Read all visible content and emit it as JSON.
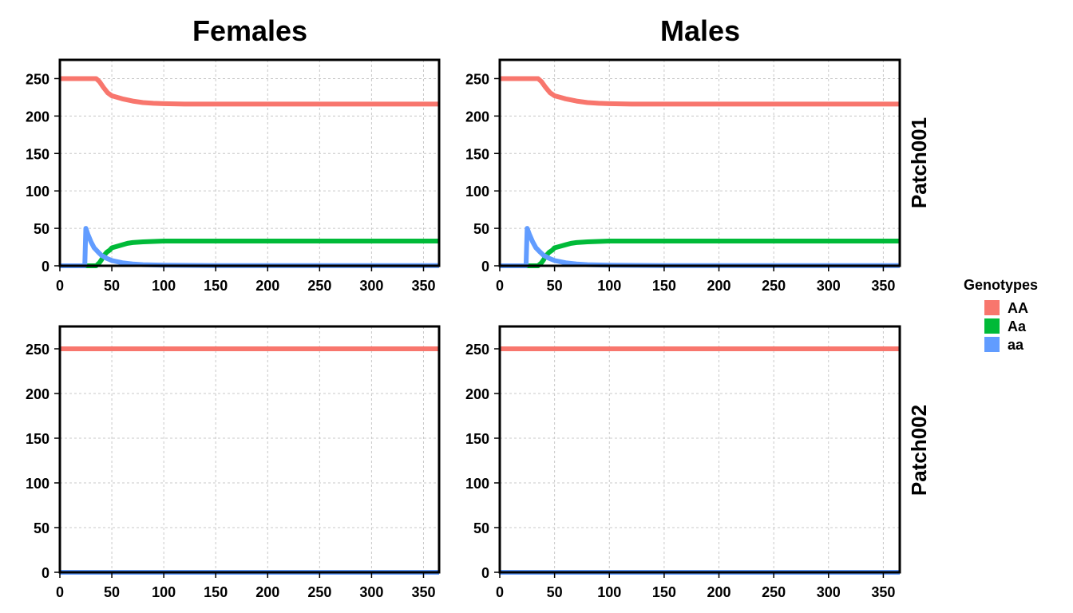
{
  "chart_data": {
    "type": "line",
    "columns": [
      "Females",
      "Males"
    ],
    "rows": [
      "Patch001",
      "Patch002"
    ],
    "xlim": [
      0,
      365
    ],
    "ylim": [
      0,
      275
    ],
    "x_ticks": [
      0,
      50,
      100,
      150,
      200,
      250,
      300,
      350
    ],
    "y_ticks": [
      0,
      50,
      100,
      150,
      200,
      250
    ],
    "grid": true,
    "legend": {
      "title": "Genotypes",
      "position": "right",
      "entries": [
        {
          "label": "AA",
          "color": "#F8766D"
        },
        {
          "label": "Aa",
          "color": "#00BA38"
        },
        {
          "label": "aa",
          "color": "#619CFF"
        }
      ]
    },
    "panels": [
      {
        "column": "Females",
        "row": "Patch001",
        "series": [
          {
            "name": "AA",
            "color": "#F8766D",
            "x": [
              0,
              35,
              38,
              42,
              46,
              50,
              55,
              60,
              70,
              80,
              90,
              100,
              120,
              150,
              200,
              365
            ],
            "y": [
              250,
              250,
              246,
              238,
              231,
              227,
              225,
              223,
              220,
              218,
              217,
              216.5,
              216,
              216,
              216,
              216
            ]
          },
          {
            "name": "Aa",
            "color": "#00BA38",
            "x": [
              0,
              35,
              38,
              40,
              42,
              45,
              48,
              50,
              55,
              60,
              65,
              70,
              80,
              90,
              100,
              120,
              150,
              200,
              365
            ],
            "y": [
              0,
              0,
              4,
              8,
              13,
              18,
              21,
              24,
              26,
              28,
              30,
              31,
              32,
              32.5,
              33,
              33,
              33,
              33,
              33
            ]
          },
          {
            "name": "aa",
            "color": "#619CFF",
            "x": [
              0,
              24,
              25,
              27,
              30,
              33,
              37,
              40,
              45,
              50,
              60,
              70,
              80,
              100,
              150,
              365
            ],
            "y": [
              0,
              0,
              50,
              42,
              32,
              24,
              18,
              14,
              10,
              7,
              4,
              2.5,
              1.5,
              0.7,
              0.3,
              0.2
            ]
          }
        ]
      },
      {
        "column": "Males",
        "row": "Patch001",
        "series": [
          {
            "name": "AA",
            "color": "#F8766D",
            "x": [
              0,
              35,
              38,
              42,
              46,
              50,
              55,
              60,
              70,
              80,
              90,
              100,
              120,
              150,
              200,
              365
            ],
            "y": [
              250,
              250,
              246,
              238,
              231,
              227,
              225,
              223,
              220,
              218,
              217,
              216.5,
              216,
              216,
              216,
              216
            ]
          },
          {
            "name": "Aa",
            "color": "#00BA38",
            "x": [
              0,
              35,
              38,
              40,
              42,
              45,
              48,
              50,
              55,
              60,
              65,
              70,
              80,
              90,
              100,
              120,
              150,
              200,
              365
            ],
            "y": [
              0,
              0,
              4,
              8,
              13,
              18,
              21,
              24,
              26,
              28,
              30,
              31,
              32,
              32.5,
              33,
              33,
              33,
              33,
              33
            ]
          },
          {
            "name": "aa",
            "color": "#619CFF",
            "x": [
              0,
              24,
              25,
              27,
              30,
              33,
              37,
              40,
              45,
              50,
              60,
              70,
              80,
              100,
              150,
              365
            ],
            "y": [
              0,
              0,
              50,
              42,
              32,
              24,
              18,
              14,
              10,
              7,
              4,
              2.5,
              1.5,
              0.7,
              0.3,
              0.2
            ]
          }
        ]
      },
      {
        "column": "Females",
        "row": "Patch002",
        "series": [
          {
            "name": "AA",
            "color": "#F8766D",
            "x": [
              0,
              365
            ],
            "y": [
              250,
              250
            ]
          },
          {
            "name": "Aa",
            "color": "#00BA38",
            "x": [
              0,
              365
            ],
            "y": [
              0,
              0
            ]
          },
          {
            "name": "aa",
            "color": "#619CFF",
            "x": [
              0,
              365
            ],
            "y": [
              0,
              0
            ]
          }
        ]
      },
      {
        "column": "Males",
        "row": "Patch002",
        "series": [
          {
            "name": "AA",
            "color": "#F8766D",
            "x": [
              0,
              365
            ],
            "y": [
              250,
              250
            ]
          },
          {
            "name": "Aa",
            "color": "#00BA38",
            "x": [
              0,
              365
            ],
            "y": [
              0,
              0
            ]
          },
          {
            "name": "aa",
            "color": "#619CFF",
            "x": [
              0,
              365
            ],
            "y": [
              0,
              0
            ]
          }
        ]
      }
    ]
  }
}
